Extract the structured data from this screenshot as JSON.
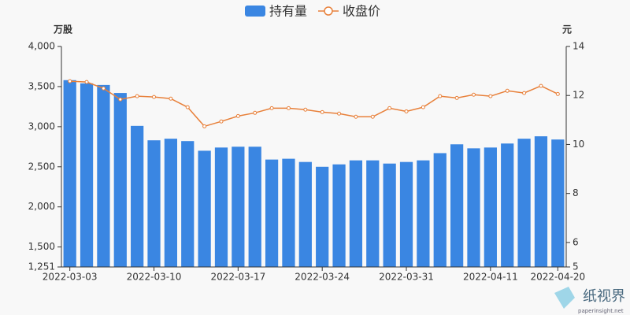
{
  "chart_data": {
    "type": "bar_line",
    "legend": "top",
    "y_label": "万股",
    "y2_label": "元",
    "watermark": {
      "name": "纸视界",
      "site": "paperinsight.net"
    },
    "categories": [
      "2022-03-03",
      null,
      null,
      null,
      null,
      "2022-03-10",
      null,
      null,
      null,
      null,
      "2022-03-17",
      null,
      null,
      null,
      null,
      "2022-03-24",
      null,
      null,
      null,
      null,
      "2022-03-31",
      null,
      null,
      null,
      null,
      "2022-04-11",
      null,
      null,
      null,
      "2022-04-20"
    ],
    "series": [
      {
        "name": "持有量",
        "type": "bar",
        "color": "#3a86e2",
        "values": [
          3580,
          3540,
          3520,
          3420,
          3010,
          2830,
          2850,
          2820,
          2700,
          2740,
          2750,
          2750,
          2590,
          2600,
          2560,
          2500,
          2530,
          2580,
          2580,
          2540,
          2560,
          2580,
          2670,
          2780,
          2730,
          2740,
          2790,
          2850,
          2880,
          2840
        ]
      },
      {
        "name": "收盘价",
        "type": "line",
        "axis": "y2",
        "color": "#e8803a",
        "values": [
          12.58,
          12.55,
          12.29,
          11.84,
          11.97,
          11.94,
          11.87,
          11.52,
          10.74,
          10.94,
          11.16,
          11.29,
          11.48,
          11.48,
          11.42,
          11.32,
          11.26,
          11.13,
          11.13,
          11.48,
          11.35,
          11.52,
          11.97,
          11.9,
          12.03,
          11.97,
          12.19,
          12.1,
          12.39,
          12.06
        ]
      }
    ],
    "ylim": [
      1251,
      4000
    ],
    "yticks": [
      {
        "value": 1251,
        "label": "1,251"
      },
      {
        "value": 1500,
        "label": "1,500"
      },
      {
        "value": 2000,
        "label": "2,000"
      },
      {
        "value": 2500,
        "label": "2,500"
      },
      {
        "value": 3000,
        "label": "3,000"
      },
      {
        "value": 3500,
        "label": "3,500"
      },
      {
        "value": 4000,
        "label": "4,000"
      }
    ],
    "y2lim": [
      5,
      14
    ],
    "y2ticks": [
      5,
      6,
      8,
      10,
      12,
      14
    ]
  }
}
